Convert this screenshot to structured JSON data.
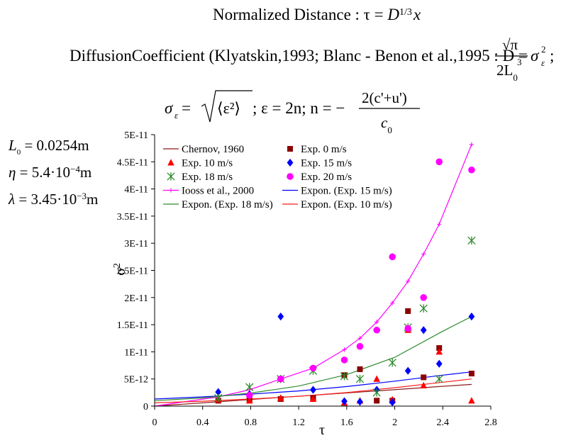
{
  "equations": {
    "line1": {
      "text": "Normalized Distance : τ = ",
      "var": "D",
      "exp": "1/3",
      "tail": "x"
    },
    "line2": {
      "text": "DiffusionCoefficient (Klyatskin,1993; Blanc - Benon et al.,1995 : D =",
      "frac_num": "√π",
      "frac_den_base": "2L",
      "frac_den_sub": "0",
      "frac_den_sup": "3",
      "tail_var": "σ",
      "tail_sub": "ε",
      "tail_sup": "2",
      "tail_end": ";"
    },
    "line3": {
      "sigma": "σ",
      "sigma_sub": "ε",
      "eq": " = ",
      "root_body": "⟨ε²⟩",
      "mid": "; ε = 2n;      n = −",
      "frac_num": "2(c'+u')",
      "frac_den_base": "c",
      "frac_den_sub": "0"
    }
  },
  "params": [
    {
      "sym": "L",
      "sub": "0",
      "eq": " = 0.0254m"
    },
    {
      "sym": "η",
      "eq": " = 5.4·10",
      "sup": "−4",
      "tail": "m"
    },
    {
      "sym": "λ",
      "eq": " = 3.45·10",
      "sup": "−3",
      "tail": "m"
    }
  ],
  "chart_data": {
    "type": "scatter",
    "xlabel": "τ",
    "ylabel": "σ",
    "ylabel_sup": "2",
    "xlim": [
      0,
      2.8
    ],
    "ylim": [
      0,
      5e-11
    ],
    "xticks": [
      {
        "v": 0,
        "label": "0"
      },
      {
        "v": 0.4,
        "label": "0.4"
      },
      {
        "v": 0.8,
        "label": "0.8"
      },
      {
        "v": 1.2,
        "label": "1.2"
      },
      {
        "v": 1.6,
        "label": "1.6"
      },
      {
        "v": 2.0,
        "label": "2"
      },
      {
        "v": 2.4,
        "label": "2.4"
      },
      {
        "v": 2.8,
        "label": "2.8"
      }
    ],
    "yticks": [
      {
        "v": 0,
        "label": "0"
      },
      {
        "v": 5e-12,
        "label": "5E-12"
      },
      {
        "v": 1e-11,
        "label": "1E-11"
      },
      {
        "v": 1.5e-11,
        "label": "1.5E-11"
      },
      {
        "v": 2e-11,
        "label": "2E-11"
      },
      {
        "v": 2.5e-11,
        "label": "2.5E-11"
      },
      {
        "v": 3e-11,
        "label": "3E-11"
      },
      {
        "v": 3.5e-11,
        "label": "3.5E-11"
      },
      {
        "v": 4e-11,
        "label": "4E-11"
      },
      {
        "v": 4.5e-11,
        "label": "4.5E-11"
      },
      {
        "v": 5e-11,
        "label": "5E-11"
      }
    ],
    "grid": false,
    "legend_position": "top",
    "series": [
      {
        "name": "Chernov, 1960",
        "kind": "line",
        "color": "#8b1a1a",
        "x": [
          0,
          0.53,
          0.79,
          1.05,
          1.32,
          1.58,
          1.71,
          1.85,
          1.98,
          2.11,
          2.24,
          2.37,
          2.64
        ],
        "y": [
          0,
          8e-13,
          1.2e-12,
          1.6e-12,
          2e-12,
          2.4e-12,
          2.6e-12,
          2.8e-12,
          3e-12,
          3.2e-12,
          3.4e-12,
          3.6e-12,
          4e-12
        ]
      },
      {
        "name": "Exp. 0 m/s",
        "kind": "marker",
        "marker": "square",
        "color": "#8b0000",
        "x": [
          0.53,
          0.79,
          1.05,
          1.32,
          1.58,
          1.71,
          1.85,
          1.98,
          2.11,
          2.24,
          2.37,
          2.64
        ],
        "y": [
          1e-12,
          1.2e-12,
          1.3e-12,
          1.5e-12,
          5.7e-12,
          6.8e-12,
          1e-12,
          1e-12,
          1.75e-11,
          5.3e-12,
          1.07e-11,
          6e-12
        ]
      },
      {
        "name": "Exp. 10 m/s",
        "kind": "marker",
        "marker": "triangle",
        "color": "#ff0000",
        "x": [
          0.53,
          0.79,
          1.05,
          1.32,
          1.58,
          1.71,
          1.85,
          1.98,
          2.11,
          2.24,
          2.37,
          2.64
        ],
        "y": [
          1.2e-12,
          1e-12,
          1.5e-12,
          1.3e-12,
          6e-13,
          1e-12,
          5e-12,
          1.2e-12,
          1.4e-11,
          3.8e-12,
          1e-11,
          1e-12
        ]
      },
      {
        "name": "Exp. 15 m/s",
        "kind": "marker",
        "marker": "diamond",
        "color": "#0000ff",
        "x": [
          0.53,
          0.79,
          1.05,
          1.32,
          1.58,
          1.71,
          1.85,
          1.98,
          2.11,
          2.24,
          2.37,
          2.64
        ],
        "y": [
          2.6e-12,
          2.2e-12,
          1.65e-11,
          3e-12,
          9e-13,
          8e-13,
          3e-12,
          7e-13,
          6.5e-12,
          1.4e-11,
          7.8e-12,
          1.65e-11
        ]
      },
      {
        "name": "Exp. 18 m/s",
        "kind": "marker",
        "marker": "asterisk",
        "color": "#2e8b2e",
        "x": [
          0.53,
          0.79,
          1.05,
          1.32,
          1.58,
          1.71,
          1.85,
          1.98,
          2.11,
          2.24,
          2.37,
          2.64
        ],
        "y": [
          1.5e-12,
          3.5e-12,
          5e-12,
          6.5e-12,
          5.5e-12,
          5e-12,
          2.5e-12,
          8e-12,
          1.45e-11,
          1.8e-11,
          5e-12,
          3.05e-11
        ]
      },
      {
        "name": "Exp. 20 m/s",
        "kind": "marker",
        "marker": "circle",
        "color": "#ff00ff",
        "x": [
          0.79,
          1.05,
          1.32,
          1.58,
          1.71,
          1.85,
          1.98,
          2.11,
          2.24,
          2.37,
          2.64
        ],
        "y": [
          2e-12,
          5e-12,
          7e-12,
          8.5e-12,
          1.1e-11,
          1.4e-11,
          2.75e-11,
          1.43e-11,
          2e-11,
          4.5e-11,
          4.35e-11
        ]
      },
      {
        "name": "Iooss et al., 2000",
        "kind": "line",
        "marker": "plus",
        "color": "#ff00ff",
        "x": [
          0,
          0.53,
          0.79,
          1.05,
          1.32,
          1.58,
          1.71,
          1.85,
          1.98,
          2.11,
          2.24,
          2.37,
          2.64
        ],
        "y": [
          0,
          1.7e-12,
          3e-12,
          5e-12,
          7e-12,
          1.04e-11,
          1.25e-11,
          1.55e-11,
          1.9e-11,
          2.3e-11,
          2.8e-11,
          3.35e-11,
          4.82e-11
        ]
      },
      {
        "name": "Expon. (Exp. 15 m/s)",
        "kind": "line",
        "color": "#0000ff",
        "x": [
          0,
          0.4,
          0.8,
          1.2,
          1.6,
          2.0,
          2.4,
          2.64
        ],
        "y": [
          1.3e-12,
          1.7e-12,
          2.2e-12,
          2.8e-12,
          3.6e-12,
          4.6e-12,
          5.7e-12,
          6.3e-12
        ]
      },
      {
        "name": "Expon. (Exp. 18 m/s)",
        "kind": "line",
        "color": "#2e8b2e",
        "x": [
          0,
          0.4,
          0.8,
          1.2,
          1.6,
          2.0,
          2.4,
          2.64
        ],
        "y": [
          1e-12,
          1.5e-12,
          2.4e-12,
          3.7e-12,
          5.8e-12,
          9e-12,
          1.38e-11,
          1.65e-11
        ]
      },
      {
        "name": "Expon. (Exp. 10 m/s)",
        "kind": "line",
        "color": "#ff2020",
        "x": [
          0,
          0.4,
          0.8,
          1.2,
          1.6,
          2.0,
          2.4,
          2.64
        ],
        "y": [
          6e-13,
          9e-13,
          1.3e-12,
          1.8e-12,
          2.5e-12,
          3.4e-12,
          4.4e-12,
          5e-12
        ]
      }
    ],
    "legend_order": [
      0,
      1,
      2,
      3,
      4,
      5,
      6,
      7,
      8,
      9
    ]
  }
}
